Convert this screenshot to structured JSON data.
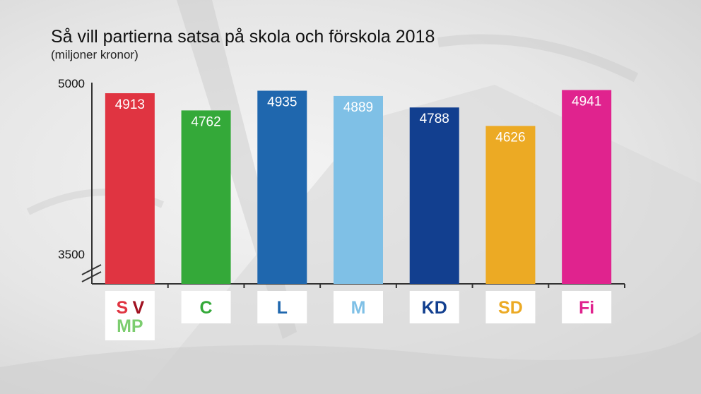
{
  "header": {
    "title": "Så vill partierna satsa på skola och förskola 2018",
    "subtitle": "(miljoner kronor)"
  },
  "chart_data": {
    "type": "bar",
    "title": "Så vill partierna satsa på skola och förskola 2018",
    "subtitle": "(miljoner kronor)",
    "ylim": [
      3500,
      5000
    ],
    "y_ticks": [
      "5000",
      "3500"
    ],
    "axis_break": true,
    "grid": false,
    "legend": "none",
    "categories": [
      "S V MP",
      "C",
      "L",
      "M",
      "KD",
      "SD",
      "Fi"
    ],
    "values": [
      4913,
      4762,
      4935,
      4889,
      4788,
      4626,
      4941
    ],
    "value_labels": [
      "4913",
      "4762",
      "4935",
      "4889",
      "4788",
      "4626",
      "4941"
    ],
    "bar_colors": [
      "#e03441",
      "#34a939",
      "#1f67ae",
      "#7fc0e6",
      "#123f8f",
      "#ecaa24",
      "#e0238e"
    ],
    "party_labels": [
      [
        {
          "text": "S",
          "color": "#e03441"
        },
        {
          "text": "V",
          "color": "#a01020"
        },
        {
          "text": "MP",
          "color": "#7ccd6f"
        }
      ],
      [
        {
          "text": "C",
          "color": "#34a939"
        }
      ],
      [
        {
          "text": "L",
          "color": "#1f67ae"
        }
      ],
      [
        {
          "text": "M",
          "color": "#7fc0e6"
        }
      ],
      [
        {
          "text": "KD",
          "color": "#123f8f"
        }
      ],
      [
        {
          "text": "SD",
          "color": "#ecaa24"
        }
      ],
      [
        {
          "text": "Fi",
          "color": "#e0238e"
        }
      ]
    ]
  }
}
